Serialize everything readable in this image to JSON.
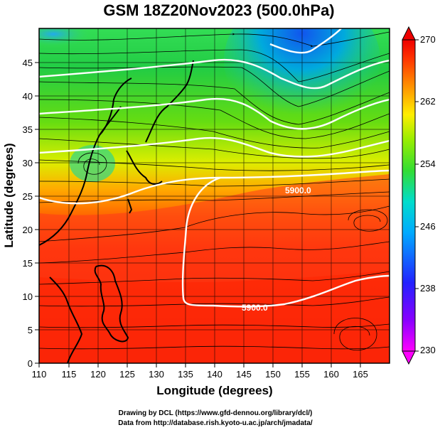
{
  "title": "GSM 18Z20Nov2023 (500.0hPa)",
  "x_axis": {
    "label": "Longitude (degrees)",
    "min": 110,
    "max": 170,
    "ticks": [
      110,
      115,
      120,
      125,
      130,
      135,
      140,
      145,
      150,
      155,
      160,
      165
    ]
  },
  "y_axis": {
    "label": "Latitude  (degrees)",
    "min": 0,
    "max": 50,
    "ticks": [
      0,
      5,
      10,
      15,
      20,
      25,
      30,
      35,
      40,
      45
    ]
  },
  "colorbar": {
    "min": 230,
    "max": 270,
    "tick_labels": [
      230,
      238,
      246,
      254,
      262,
      270
    ],
    "colors": [
      "#ff00ff",
      "#8800ff",
      "#2222ff",
      "#00aaff",
      "#00ddcc",
      "#33dd33",
      "#99ee00",
      "#ffee00",
      "#ff8800",
      "#ff3300",
      "#ee0000"
    ]
  },
  "contour_labels": [
    {
      "text": "5900.0",
      "lon": 148,
      "lat": 9.2
    },
    {
      "text": "5900.0",
      "lon": 150,
      "lat": 26.2
    }
  ],
  "credits": {
    "line1": "Drawing by DCL (https://www.gfd-dennou.org/library/dcl/)",
    "line2": "Data from http://database.rish.kyoto-u.ac.jp/arch/jmadata/"
  }
}
